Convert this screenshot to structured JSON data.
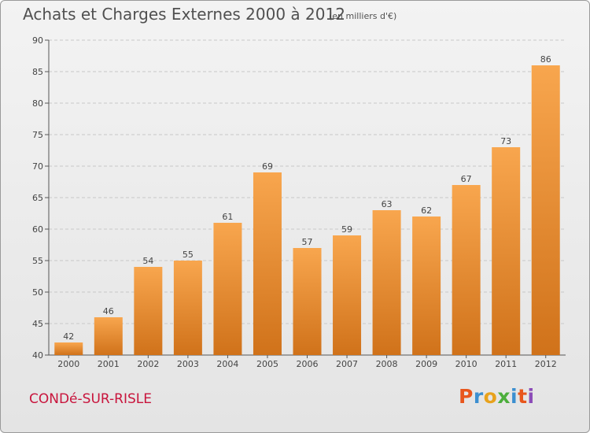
{
  "header": {
    "title": "Achats et Charges Externes 2000 à 2012",
    "subtitle": "(en milliers d'€)"
  },
  "footer": {
    "location": "CONDé-SUR-RISLE",
    "logo": [
      "P",
      "r",
      "o",
      "x",
      "i",
      "t",
      "i"
    ],
    "logo_colors": [
      "#e8561c",
      "#3c8fd0",
      "#e8a21c",
      "#4cae3c",
      "#3c8fd0",
      "#e8561c",
      "#8c4cb8"
    ]
  },
  "colors": {
    "bar_top": "#f8a64e",
    "bar_bottom": "#d0721a",
    "text": "#444444",
    "grid": "#c8c8c8"
  },
  "chart_data": {
    "type": "bar",
    "title": "Achats et Charges Externes 2000 à 2012",
    "subtitle": "(en milliers d'€)",
    "categories": [
      "2000",
      "2001",
      "2002",
      "2003",
      "2004",
      "2005",
      "2006",
      "2007",
      "2008",
      "2009",
      "2010",
      "2011",
      "2012"
    ],
    "values": [
      42,
      46,
      54,
      55,
      61,
      69,
      57,
      59,
      63,
      62,
      67,
      73,
      86
    ],
    "ylim": [
      40,
      90
    ],
    "yticks": [
      40,
      45,
      50,
      55,
      60,
      65,
      70,
      75,
      80,
      85,
      90
    ],
    "grid": true,
    "xlabel": "",
    "ylabel": ""
  }
}
